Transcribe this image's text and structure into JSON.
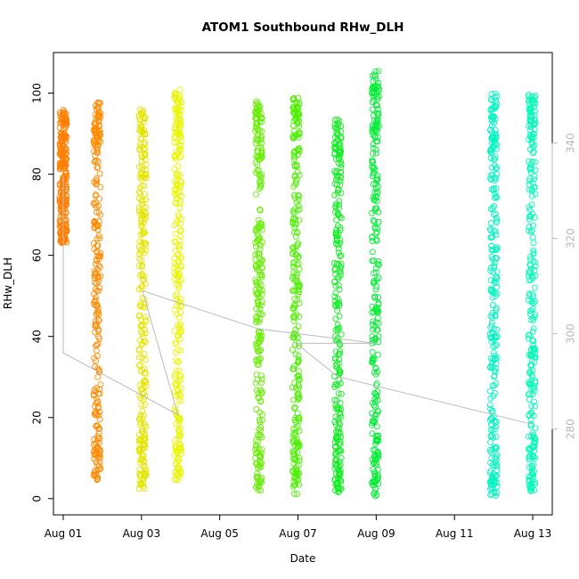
{
  "chart_data": {
    "type": "scatter",
    "title": "ATOM1 Southbound RHw_DLH",
    "xlabel": "Date",
    "ylabel": "RHw_DLH",
    "x_ticks": [
      "Aug 01",
      "Aug 03",
      "Aug 05",
      "Aug 07",
      "Aug 09",
      "Aug 11",
      "Aug 13"
    ],
    "y_ticks": [
      0,
      20,
      40,
      60,
      80,
      100
    ],
    "y2_ticks": [
      280,
      300,
      320,
      340
    ],
    "xlim_days": [
      0.75,
      13.5
    ],
    "ylim": [
      -4,
      110
    ],
    "y2lim": [
      262,
      359
    ],
    "grid": false,
    "point_style": "open-circle",
    "overlay_line_color": "#bbbbbb",
    "passes": [
      {
        "day": 1.0,
        "ymin": 63,
        "ymax": 96,
        "color": "#ff7f00"
      },
      {
        "day": 1.87,
        "ymin": 4.5,
        "ymax": 98,
        "color": "#ff8a00"
      },
      {
        "day": 3.03,
        "ymin": 2,
        "ymax": 96,
        "color": "#e4e400"
      },
      {
        "day": 3.93,
        "ymin": 4.5,
        "ymax": 101,
        "color": "#e8f500"
      },
      {
        "day": 6.0,
        "ymin": 1.5,
        "ymax": 98,
        "color": "#66ee00"
      },
      {
        "day": 6.95,
        "ymin": 1,
        "ymax": 99,
        "color": "#4cf000"
      },
      {
        "day": 8.02,
        "ymin": 1.5,
        "ymax": 94,
        "color": "#11ee22"
      },
      {
        "day": 8.98,
        "ymin": 0.5,
        "ymax": 105.5,
        "color": "#00ee33"
      },
      {
        "day": 12.0,
        "ymin": 0.5,
        "ymax": 100,
        "color": "#00f5c0"
      },
      {
        "day": 12.98,
        "ymin": 1.5,
        "ymax": 100,
        "color": "#00fab8"
      }
    ],
    "overlay_line": [
      {
        "day": 1.0,
        "y2": 333
      },
      {
        "day": 1.0,
        "y2": 296
      },
      {
        "day": 3.93,
        "y2": 283
      },
      {
        "day": 3.03,
        "y2": 309
      },
      {
        "day": 6.0,
        "y2": 301
      },
      {
        "day": 8.98,
        "y2": 298
      },
      {
        "day": 6.95,
        "y2": 298
      },
      {
        "day": 8.02,
        "y2": 291
      },
      {
        "day": 12.98,
        "y2": 281
      }
    ]
  }
}
